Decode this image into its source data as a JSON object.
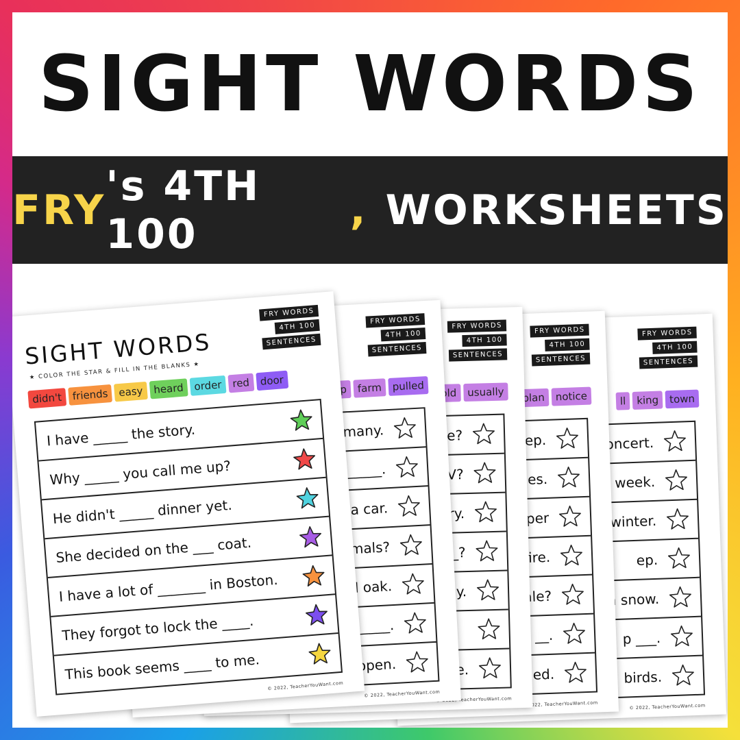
{
  "header": {
    "title": "SIGHT WORDS",
    "subtitle_parts": [
      "FRY",
      "'s 4TH 100",
      ",",
      "WORKSHEETS"
    ]
  },
  "worksheets": [
    {
      "title": "SIGHT WORDS",
      "instructions": "COLOR THE STAR & FILL IN THE BLANKS",
      "tags": [
        "FRY WORDS",
        "4TH 100",
        "SENTENCES"
      ],
      "words": [
        "didn't",
        "friends",
        "easy",
        "heard",
        "order",
        "red",
        "door"
      ],
      "sentences": [
        "I have _____ the story.",
        "Why _____ you call me up?",
        "He didn't _____ dinner yet.",
        "She decided on the ___ coat.",
        "I have a lot of _______ in Boston.",
        "They forgot to lock the ____.",
        "This book seems ____ to me."
      ],
      "footer": "© 2022, TeacherYouWant.com"
    },
    {
      "tags": [
        "FRY WORDS",
        "4TH 100",
        "SENTENCES"
      ],
      "words": [
        "ap",
        "farm",
        "pulled"
      ],
      "sentences": [
        "many.",
        "e _____.",
        "a car.",
        "nimals?",
        "d oak.",
        "_____.",
        "open."
      ],
      "footer": "© 2022, TeacherYouWant.com"
    },
    {
      "tags": [
        "FRY WORDS",
        "4TH 100",
        "SENTENCES"
      ],
      "words": [
        "told",
        "usually"
      ],
      "sentences": [
        "one?",
        "TV?",
        "ory.",
        "__?",
        "rday.",
        null,
        "ke."
      ],
      "footer": "© 2022, TeacherYouWant.com"
    },
    {
      "tags": [
        "FRY WORDS",
        "4TH 100",
        "SENTENCES"
      ],
      "words": [
        "plan",
        "notice"
      ],
      "sentences": [
        "leep.",
        "vies.",
        "per",
        "fire.",
        "ale?",
        "__.",
        "ed."
      ],
      "footer": "© 2022, TeacherYouWant.com"
    },
    {
      "tags": [
        "FRY WORDS",
        "4TH 100",
        "SENTENCES"
      ],
      "words": [
        "ll",
        "king",
        "town"
      ],
      "sentences": [
        "oncert.",
        "week.",
        "winter.",
        "ep.",
        "h snow.",
        "p ___.",
        "birds."
      ],
      "footer": "© 2022, TeacherYouWant.com"
    }
  ]
}
